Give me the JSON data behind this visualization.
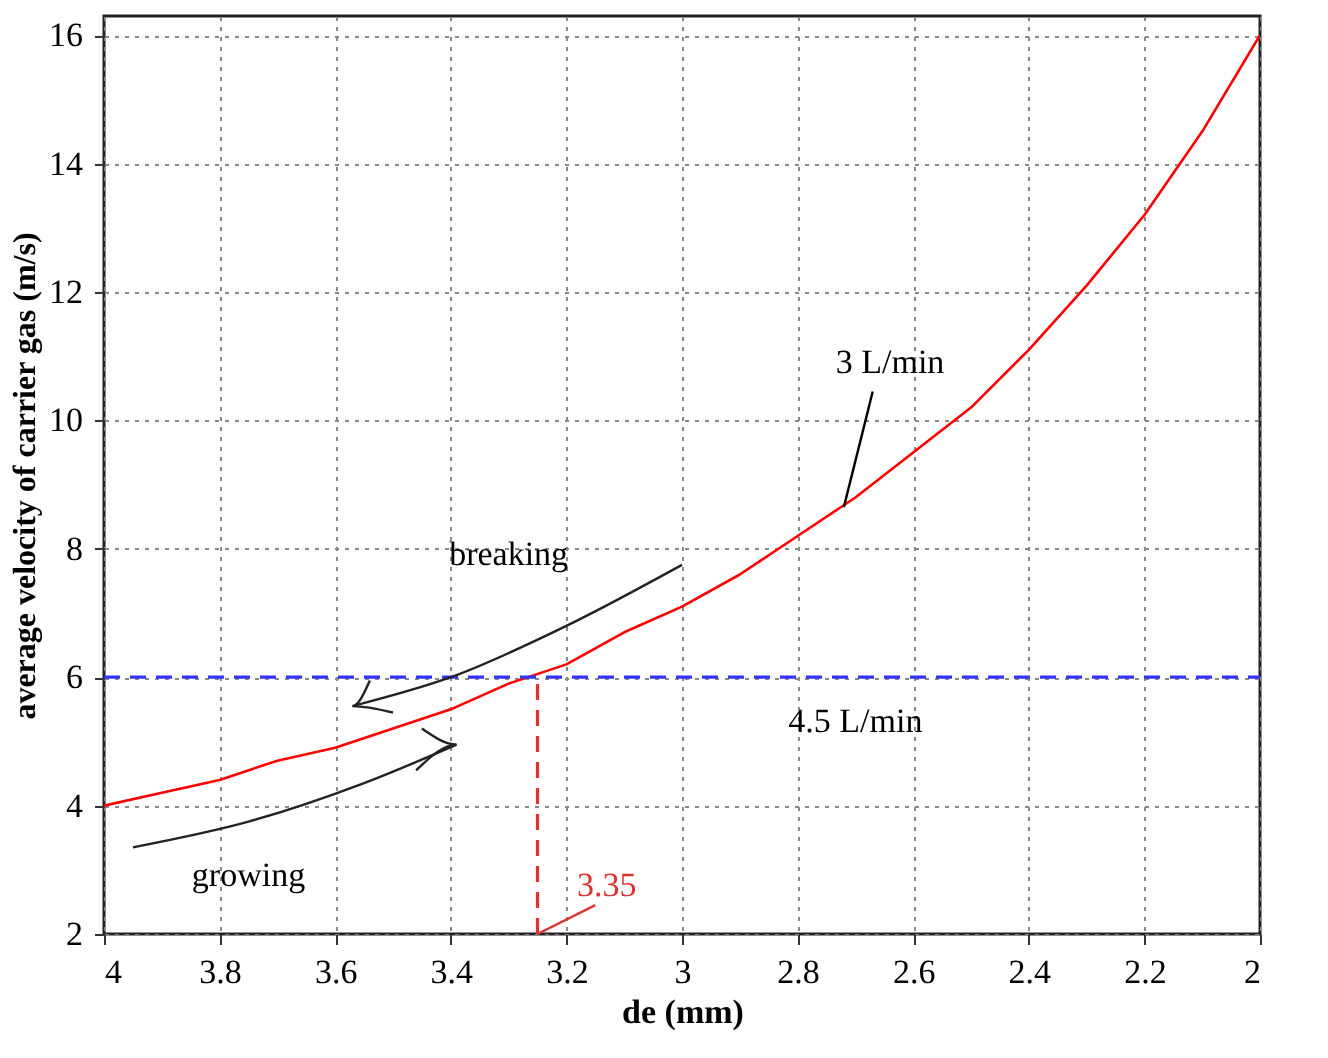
{
  "chart_data": {
    "type": "line",
    "xlabel": "de (mm)",
    "ylabel": "average velocity of carrier gas (m/s)",
    "x": [
      4,
      3.9,
      3.8,
      3.7,
      3.6,
      3.5,
      3.4,
      3.3,
      3.2,
      3.1,
      3,
      2.9,
      2.8,
      2.7,
      2.6,
      2.5,
      2.4,
      2.3,
      2.2,
      2.1,
      2
    ],
    "series": [
      {
        "color": "#ff0000",
        "values": [
          4.0,
          4.2,
          4.4,
          4.7,
          4.9,
          5.2,
          5.5,
          5.9,
          6.2,
          6.7,
          7.1,
          7.6,
          8.2,
          8.8,
          9.5,
          10.2,
          11.1,
          12.1,
          13.2,
          14.5,
          16.0
        ]
      }
    ],
    "xlim": [
      4,
      2
    ],
    "xticks": [
      4,
      3.8,
      3.6,
      3.4,
      3.2,
      3,
      2.8,
      2.6,
      2.4,
      2.2,
      2
    ],
    "ylim": [
      2,
      16.3
    ],
    "yticks": [
      2,
      4,
      6,
      8,
      10,
      12,
      14,
      16
    ],
    "grid": true,
    "line_style": "solid",
    "marker": "none",
    "ref_lines": [
      {
        "axis": "y",
        "value": 6,
        "label": "4.5 L/min",
        "color": "#3333ff",
        "line_style": "dashed"
      },
      {
        "axis": "x",
        "value": 3.25,
        "color": "#e03030",
        "line_style": "dashed"
      }
    ],
    "annotations": [
      {
        "text": "3 L/min",
        "x": 2.72,
        "y": 8.65
      },
      "breaking",
      "growing",
      {
        "text": "3.35",
        "x": 3.25,
        "y": 2
      }
    ]
  }
}
